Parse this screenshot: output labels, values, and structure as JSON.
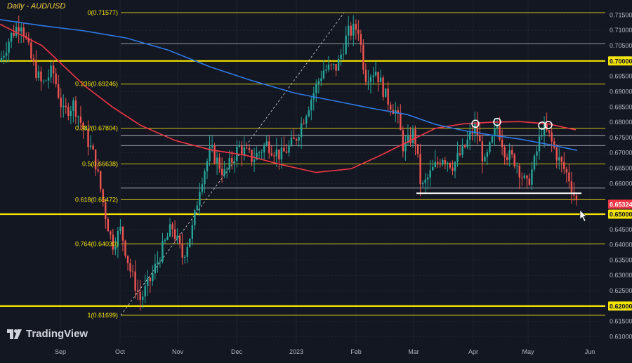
{
  "chart_data": {
    "type": "candlestick",
    "title": "Daily - AUD/USD",
    "platform": "TradingView",
    "x_ticks": [
      "Sep",
      "Oct",
      "Nov",
      "Dec",
      "2023",
      "Feb",
      "Mar",
      "Apr",
      "May",
      "Jun"
    ],
    "y_range": [
      0.6075,
      0.7175
    ],
    "y_ticks": [
      "0.71500",
      "0.71000",
      "0.70500",
      "0.69500",
      "0.69000",
      "0.68500",
      "0.68000",
      "0.67500",
      "0.67000",
      "0.66500",
      "0.66000",
      "0.64500",
      "0.64000",
      "0.63500",
      "0.63000",
      "0.62500",
      "0.61500",
      "0.61000"
    ],
    "last_price": {
      "label": "0.65324",
      "value": 0.65324,
      "color": "#f23645"
    },
    "key_levels": [
      {
        "label": "0.70000",
        "value": 0.7,
        "color": "#f5e400"
      },
      {
        "label": "0.65000",
        "value": 0.65,
        "color": "#f5e400"
      },
      {
        "label": "0.62000",
        "value": 0.62,
        "color": "#f5e400"
      }
    ],
    "fib_levels": [
      {
        "label": "0(0.71577)",
        "value": 0.71577
      },
      {
        "label": "0.236(0.69246)",
        "value": 0.69246
      },
      {
        "label": "0.382(0.67804)",
        "value": 0.67804
      },
      {
        "label": "0.5(0.66638)",
        "value": 0.66638
      },
      {
        "label": "0.618(0.65472)",
        "value": 0.65472
      },
      {
        "label": "0.764(0.64030)",
        "value": 0.6403
      },
      {
        "label": "1(0.61699)",
        "value": 0.61699
      }
    ],
    "support_line": {
      "value": 0.6568,
      "from_x": 593,
      "to_x": 828
    },
    "ma_red": [
      [
        0,
        0.712
      ],
      [
        60,
        0.705
      ],
      [
        120,
        0.692
      ],
      [
        160,
        0.685
      ],
      [
        200,
        0.679
      ],
      [
        250,
        0.674
      ],
      [
        300,
        0.671
      ],
      [
        350,
        0.6692
      ],
      [
        400,
        0.6662
      ],
      [
        450,
        0.6636
      ],
      [
        500,
        0.6648
      ],
      [
        540,
        0.669
      ],
      [
        580,
        0.6735
      ],
      [
        620,
        0.678
      ],
      [
        660,
        0.6795
      ],
      [
        700,
        0.68
      ],
      [
        740,
        0.6802
      ],
      [
        780,
        0.6795
      ],
      [
        820,
        0.6775
      ]
    ],
    "ma_blue": [
      [
        0,
        0.7135
      ],
      [
        60,
        0.7115
      ],
      [
        120,
        0.7098
      ],
      [
        180,
        0.7075
      ],
      [
        240,
        0.7035
      ],
      [
        300,
        0.698
      ],
      [
        360,
        0.6935
      ],
      [
        420,
        0.6895
      ],
      [
        480,
        0.6868
      ],
      [
        530,
        0.6845
      ],
      [
        580,
        0.6825
      ],
      [
        620,
        0.6793
      ],
      [
        660,
        0.6773
      ],
      [
        700,
        0.6758
      ],
      [
        740,
        0.6745
      ],
      [
        780,
        0.6728
      ],
      [
        822,
        0.6708
      ]
    ],
    "circle_highs": [
      [
        677,
        0.6795
      ],
      [
        708,
        0.6801
      ],
      [
        772,
        0.6789
      ],
      [
        781,
        0.6791
      ]
    ],
    "trend_line": {
      "from": [
        172,
        0.61699
      ],
      "to": [
        490,
        0.71577
      ]
    },
    "price_path": [
      [
        0,
        0.7
      ],
      [
        15,
        0.708
      ],
      [
        30,
        0.713
      ],
      [
        45,
        0.7
      ],
      [
        60,
        0.692
      ],
      [
        75,
        0.697
      ],
      [
        90,
        0.683
      ],
      [
        105,
        0.686
      ],
      [
        115,
        0.68
      ],
      [
        135,
        0.668
      ],
      [
        150,
        0.65
      ],
      [
        160,
        0.64
      ],
      [
        172,
        0.645
      ],
      [
        185,
        0.632
      ],
      [
        200,
        0.622
      ],
      [
        215,
        0.629
      ],
      [
        230,
        0.638
      ],
      [
        245,
        0.646
      ],
      [
        260,
        0.636
      ],
      [
        275,
        0.646
      ],
      [
        285,
        0.66
      ],
      [
        300,
        0.671
      ],
      [
        320,
        0.663
      ],
      [
        340,
        0.672
      ],
      [
        360,
        0.668
      ],
      [
        380,
        0.673
      ],
      [
        400,
        0.669
      ],
      [
        420,
        0.674
      ],
      [
        440,
        0.686
      ],
      [
        460,
        0.697
      ],
      [
        480,
        0.698
      ],
      [
        495,
        0.709
      ],
      [
        510,
        0.711
      ],
      [
        520,
        0.695
      ],
      [
        535,
        0.697
      ],
      [
        550,
        0.688
      ],
      [
        565,
        0.683
      ],
      [
        575,
        0.671
      ],
      [
        590,
        0.677
      ],
      [
        600,
        0.658
      ],
      [
        615,
        0.664
      ],
      [
        630,
        0.669
      ],
      [
        645,
        0.666
      ],
      [
        660,
        0.671
      ],
      [
        677,
        0.679
      ],
      [
        690,
        0.666
      ],
      [
        708,
        0.679
      ],
      [
        720,
        0.67
      ],
      [
        735,
        0.667
      ],
      [
        750,
        0.659
      ],
      [
        760,
        0.666
      ],
      [
        772,
        0.678
      ],
      [
        781,
        0.676
      ],
      [
        795,
        0.668
      ],
      [
        810,
        0.662
      ],
      [
        822,
        0.6532
      ]
    ]
  }
}
